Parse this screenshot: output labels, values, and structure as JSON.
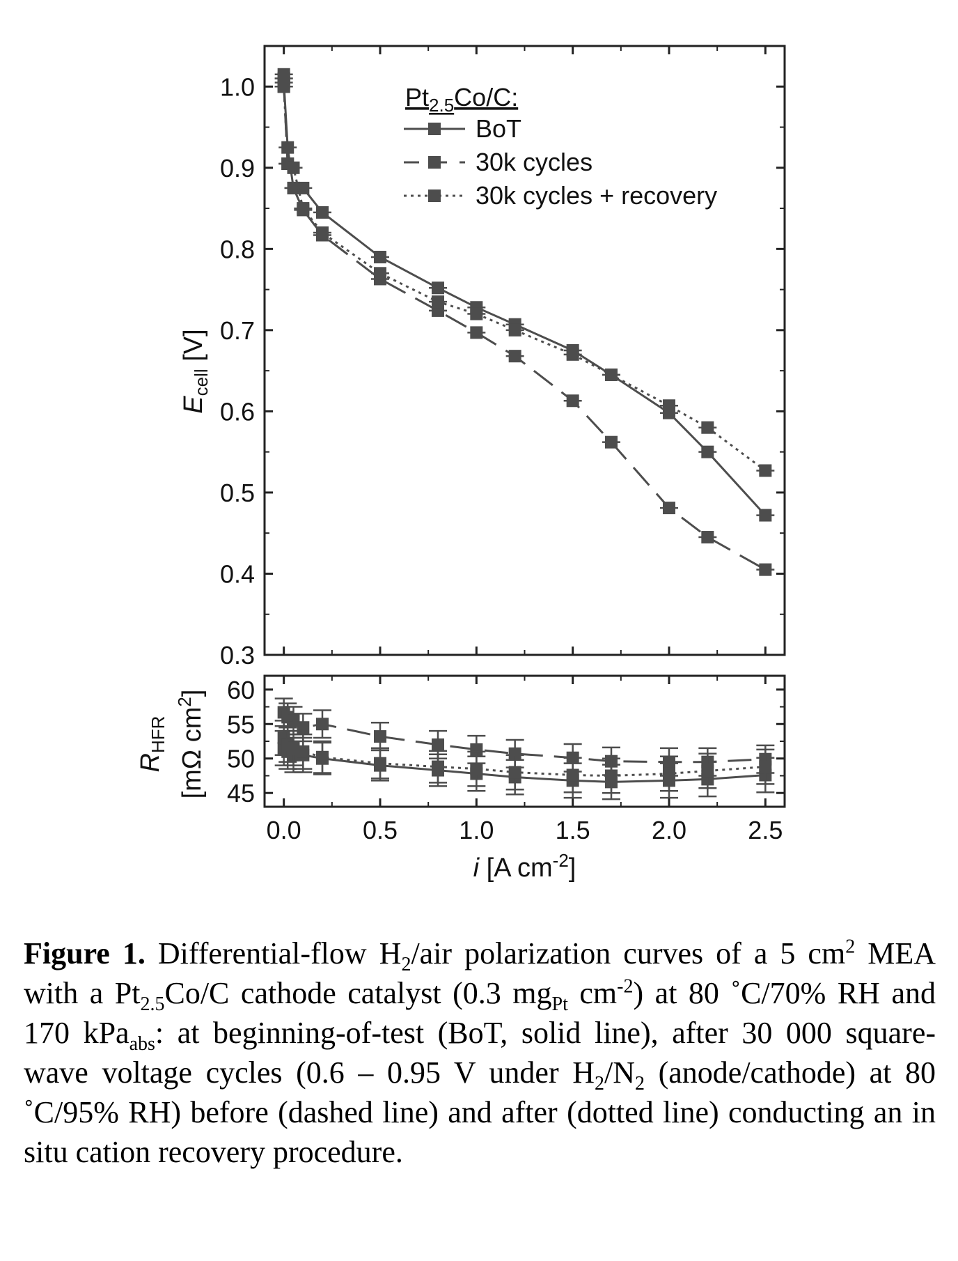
{
  "chart_data": [
    {
      "type": "line",
      "panel": "top",
      "ylabel_main": "E",
      "ylabel_sub": "cell",
      "ylabel_unit": "[V]",
      "ylim": [
        0.3,
        1.05
      ],
      "xlim": [
        -0.1,
        2.6
      ],
      "yticks": [
        0.3,
        0.4,
        0.5,
        0.6,
        0.7,
        0.8,
        0.9,
        1.0
      ],
      "ytick_labels": [
        "0.3",
        "0.4",
        "0.5",
        "0.6",
        "0.7",
        "0.8",
        "0.9",
        "1.0"
      ],
      "legend": {
        "title_main": "Pt",
        "title_sub": "2.5",
        "title_rest": "Co/C:",
        "placement": "top-right"
      },
      "series": [
        {
          "name": "BoT",
          "style": "solid",
          "x": [
            0.0,
            0.0,
            0.02,
            0.05,
            0.1,
            0.2,
            0.5,
            0.8,
            1.0,
            1.2,
            1.5,
            1.7,
            2.0,
            2.2,
            2.5
          ],
          "y": [
            1.015,
            1.005,
            0.925,
            0.875,
            0.875,
            0.845,
            0.79,
            0.752,
            0.728,
            0.707,
            0.675,
            0.645,
            0.598,
            0.55,
            0.472
          ]
        },
        {
          "name": "30k cycles",
          "style": "dashed",
          "x": [
            0.0,
            0.0,
            0.02,
            0.05,
            0.1,
            0.2,
            0.5,
            0.8,
            1.0,
            1.2,
            1.5,
            1.7,
            2.0,
            2.2,
            2.5
          ],
          "y": [
            1.01,
            1.0,
            0.905,
            0.875,
            0.848,
            0.817,
            0.763,
            0.724,
            0.697,
            0.668,
            0.613,
            0.562,
            0.481,
            0.445,
            0.405
          ]
        },
        {
          "name": "30k cycles + recovery",
          "style": "dotted",
          "x": [
            0.0,
            0.0,
            0.02,
            0.05,
            0.1,
            0.2,
            0.5,
            0.8,
            1.0,
            1.2,
            1.5,
            1.7,
            2.0,
            2.2,
            2.5
          ],
          "y": [
            1.01,
            1.0,
            0.905,
            0.9,
            0.85,
            0.82,
            0.77,
            0.735,
            0.72,
            0.7,
            0.67,
            0.645,
            0.607,
            0.58,
            0.527
          ]
        }
      ]
    },
    {
      "type": "line",
      "panel": "bottom",
      "ylabel_line1_main": "R",
      "ylabel_line1_sub": "HFR",
      "ylabel_line2_pre": "[mΩ cm",
      "ylabel_line2_sup": "2",
      "ylabel_line2_post": "]",
      "xlabel_main": "i",
      "xlabel_unit_pre": " [A cm",
      "xlabel_unit_sup": "-2",
      "xlabel_unit_post": "]",
      "ylim": [
        43,
        62
      ],
      "xlim": [
        -0.1,
        2.6
      ],
      "yticks": [
        45,
        50,
        55,
        60
      ],
      "ytick_labels": [
        "45",
        "50",
        "55",
        "60"
      ],
      "xticks": [
        0.0,
        0.5,
        1.0,
        1.5,
        2.0,
        2.5
      ],
      "xtick_labels": [
        "0.0",
        "0.5",
        "1.0",
        "1.5",
        "2.0",
        "2.5"
      ],
      "series": [
        {
          "name": "BoT",
          "style": "solid",
          "x": [
            0.0,
            0.02,
            0.05,
            0.1,
            0.2,
            0.5,
            0.8,
            1.0,
            1.2,
            1.5,
            1.7,
            2.0,
            2.2,
            2.5
          ],
          "y": [
            51.5,
            51.0,
            50.5,
            50.5,
            50.0,
            49.0,
            48.3,
            47.8,
            47.3,
            46.8,
            46.6,
            46.8,
            47.0,
            47.6
          ],
          "err": [
            2.5,
            2.5,
            2.5,
            2.5,
            2.3,
            2.2,
            2.3,
            2.5,
            2.5,
            2.5,
            2.5,
            2.5,
            2.5,
            2.5
          ]
        },
        {
          "name": "30k cycles",
          "style": "dashed",
          "x": [
            0.0,
            0.02,
            0.05,
            0.1,
            0.2,
            0.5,
            0.8,
            1.0,
            1.2,
            1.5,
            1.7,
            2.0,
            2.2,
            2.5
          ],
          "y": [
            56.7,
            56.0,
            55.5,
            54.5,
            55.0,
            53.2,
            52.0,
            51.3,
            50.7,
            50.1,
            49.6,
            49.5,
            49.5,
            49.9
          ],
          "err": [
            2.0,
            2.0,
            2.0,
            2.0,
            2.0,
            2.0,
            2.0,
            2.0,
            2.0,
            2.0,
            2.0,
            2.0,
            2.0,
            2.0
          ]
        },
        {
          "name": "30k cycles + recovery",
          "style": "dotted",
          "x": [
            0.0,
            0.02,
            0.05,
            0.1,
            0.2,
            0.5,
            0.8,
            1.0,
            1.2,
            1.5,
            1.7,
            2.0,
            2.2,
            2.5
          ],
          "y": [
            53.0,
            52.0,
            51.5,
            51.0,
            50.2,
            49.3,
            48.8,
            48.5,
            48.0,
            47.6,
            47.5,
            47.8,
            48.2,
            48.8
          ],
          "err": [
            2.5,
            2.5,
            2.5,
            2.5,
            2.3,
            2.2,
            2.3,
            2.5,
            2.5,
            2.5,
            2.5,
            2.5,
            2.5,
            2.5
          ]
        }
      ]
    }
  ],
  "caption": {
    "label": "Figure 1.",
    "p1": " Differential-flow H",
    "s1": "2",
    "p2": "/air polarization curves of a 5 cm",
    "s2": "2",
    "p3": " MEA with a Pt",
    "s3": "2.5",
    "p4": "Co/C cathode catalyst (0.3 mg",
    "s4": "Pt",
    "p5": " cm",
    "s5": "-2",
    "p6": ") at 80 ˚C/70% RH and 170 kPa",
    "s6": "abs",
    "p7": ": at beginning-of-test (BoT, solid line), after 30 000 square-wave voltage cycles (0.6 – 0.95 V under H",
    "s7": "2",
    "p8": "/N",
    "s8": "2",
    "p9": " (anode/cathode) at 80 ˚C/95% RH) before (dashed line) and after (dotted line) conducting an in situ cation recovery procedure."
  }
}
